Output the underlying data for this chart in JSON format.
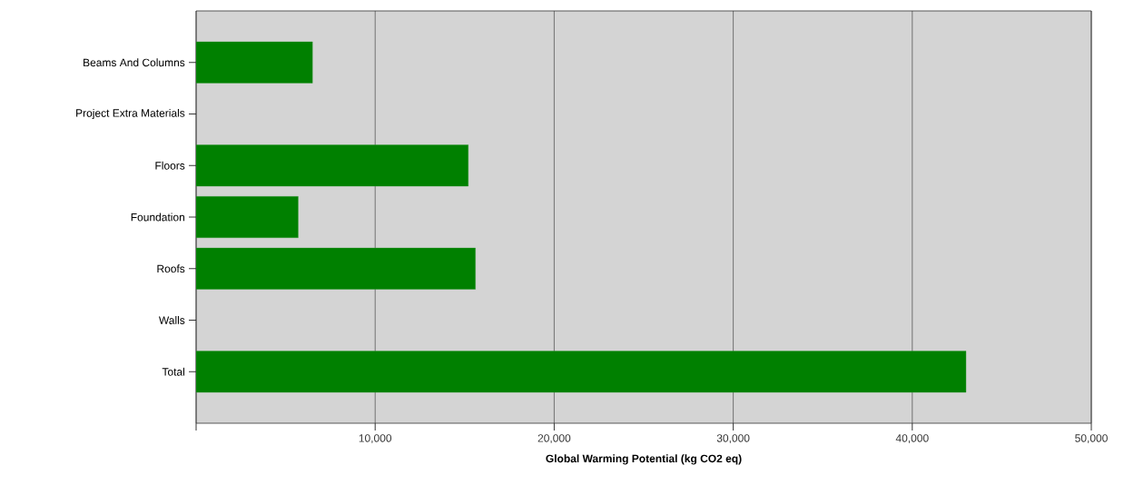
{
  "chart_data": {
    "type": "bar",
    "orientation": "horizontal",
    "xlabel": "Global Warming Potential (kg CO2 eq)",
    "categories": [
      "Beams And Columns",
      "Project Extra Materials",
      "Floors",
      "Foundation",
      "Roofs",
      "Walls",
      "Total"
    ],
    "values": [
      6500,
      null,
      15200,
      5700,
      15600,
      null,
      43000
    ],
    "color": "#008000",
    "xlim": [
      0,
      50000
    ],
    "xticks": [
      {
        "value": 0,
        "label": null
      },
      {
        "value": 10000,
        "label": "10,000"
      },
      {
        "value": 20000,
        "label": "20,000"
      },
      {
        "value": 30000,
        "label": "30,000"
      },
      {
        "value": 40000,
        "label": "40,000"
      },
      {
        "value": 50000,
        "label": "50,000"
      }
    ],
    "grid": "x"
  }
}
